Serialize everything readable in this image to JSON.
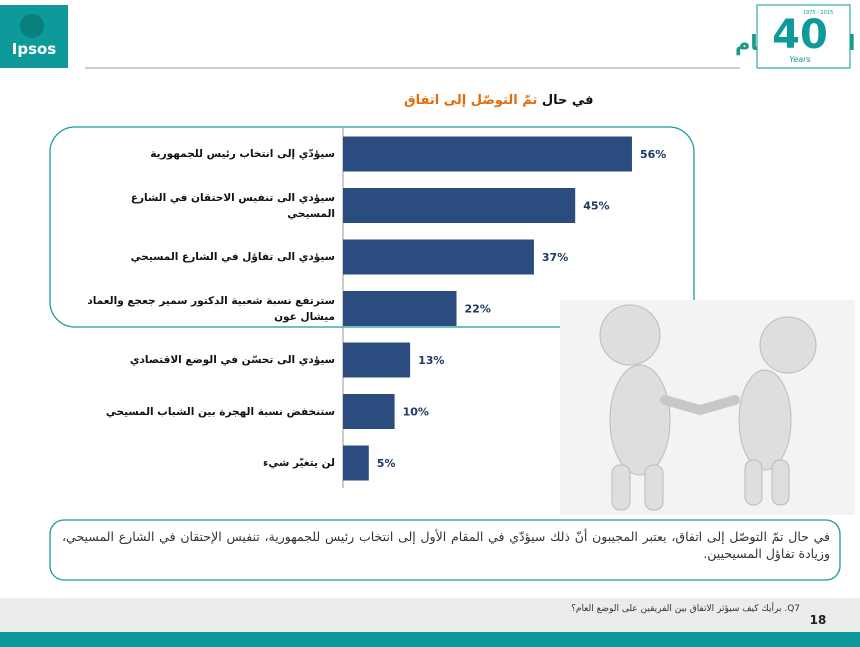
{
  "header": {
    "title": "تأثير الحوار على الوضع العام",
    "logo_text": "Ipsos",
    "anniversary_number": "40",
    "anniversary_years": "1975 - 2015",
    "anniversary_word": "Years"
  },
  "chart_data": {
    "type": "bar",
    "orientation": "horizontal",
    "subtitle": [
      "في حال",
      "تمّ التوصّل إلى اتفاق"
    ],
    "categories": [
      "سيؤدّي إلى انتخاب رئيس للجمهورية",
      "سيؤدي الى تنفيس الاحتقان في الشارع المسيحي",
      "سيؤدي الى تفاؤل في الشارع المسيحي",
      "سترتفع نسبة شعبية  الدكتور سمير جعجع والعماد ميشال عون",
      "سيؤدي الى تحسّن في الوضع الاقتصادي",
      "ستنخفض نسبة الهجرة  بين الشباب المسيحي",
      "لن يتغيّر شيء"
    ],
    "values": [
      56,
      45,
      37,
      22,
      13,
      10,
      5
    ],
    "value_labels": [
      "56%",
      "45%",
      "37%",
      "22%",
      "13%",
      "10%",
      "5%"
    ],
    "color": "#2b4c7e",
    "xlim": [
      0,
      100
    ]
  },
  "summary": "في حال تمّ التوصّل إلى اتفاق، يعتبر المجيبون أنّ ذلك سيؤدّي في المقام الأول إلى انتخاب رئيس للجمهورية، تنفيس الإحتقان في الشارع المسيحي، وزيادة تفاؤل المسيحيين.",
  "footer": {
    "question": "Q7. برأيك كيف سيؤثر الاتفاق بين الفريقين على الوضع العام؟",
    "page": "18"
  }
}
